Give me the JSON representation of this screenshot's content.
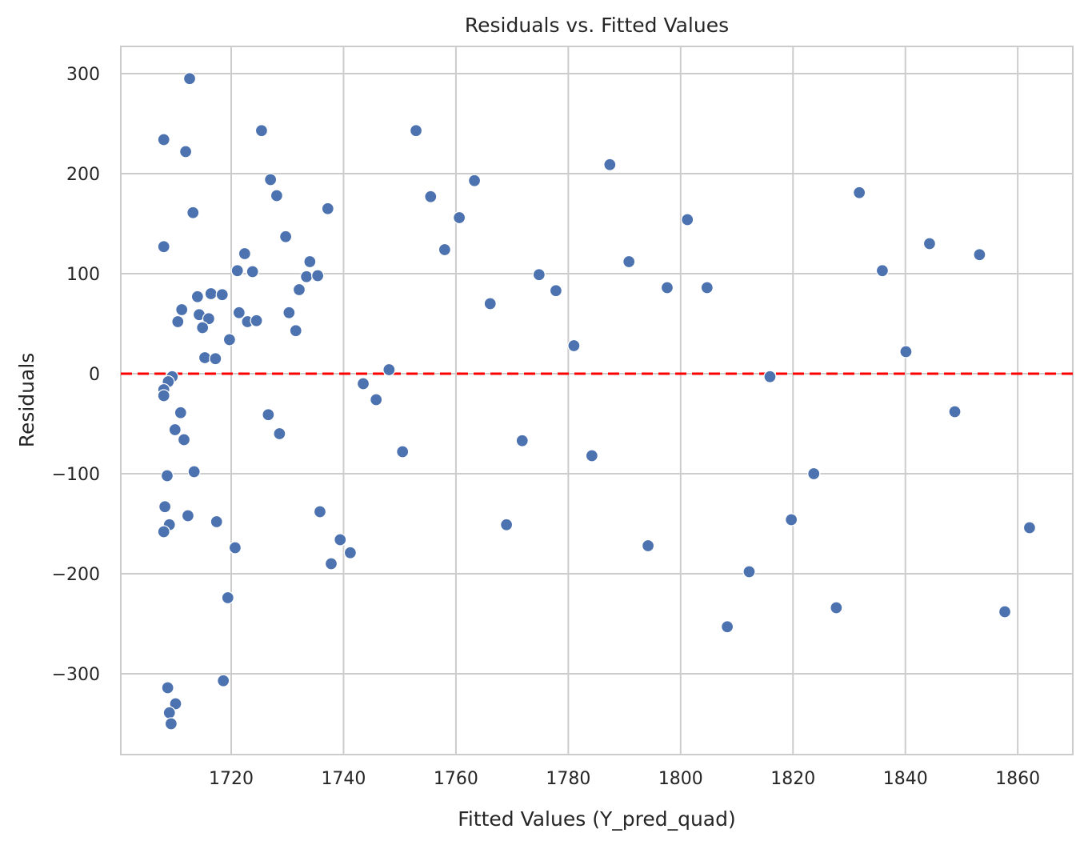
{
  "chart_data": {
    "type": "scatter",
    "title": "Residuals vs. Fitted Values",
    "xlabel": "Fitted Values (Y_pred_quad)",
    "ylabel": "Residuals",
    "xlim": [
      1700.35,
      1869.8
    ],
    "ylim": [
      -380.8,
      327.2
    ],
    "xticks": [
      1720,
      1740,
      1760,
      1780,
      1800,
      1820,
      1840,
      1860
    ],
    "yticks": [
      -300,
      -200,
      -100,
      0,
      100,
      200,
      300
    ],
    "xtick_labels": [
      "1720",
      "1740",
      "1760",
      "1780",
      "1800",
      "1820",
      "1840",
      "1860"
    ],
    "ytick_labels": [
      "−300",
      "−200",
      "−100",
      "0",
      "100",
      "200",
      "300"
    ],
    "grid": true,
    "reference_line": {
      "y": 0,
      "style": "dashed",
      "color": "#ff0000"
    },
    "point_color": "#4c72b0",
    "points": [
      [
        1712.6,
        295
      ],
      [
        1708.0,
        234
      ],
      [
        1711.9,
        222
      ],
      [
        1725.4,
        243
      ],
      [
        1713.2,
        161
      ],
      [
        1708.0,
        127
      ],
      [
        1727.0,
        194
      ],
      [
        1728.1,
        178
      ],
      [
        1729.7,
        137
      ],
      [
        1737.2,
        165
      ],
      [
        1722.4,
        120
      ],
      [
        1721.1,
        103
      ],
      [
        1723.8,
        102
      ],
      [
        1734.0,
        112
      ],
      [
        1733.4,
        97
      ],
      [
        1735.4,
        98
      ],
      [
        1732.1,
        84
      ],
      [
        1714.0,
        77
      ],
      [
        1716.4,
        80
      ],
      [
        1718.4,
        79
      ],
      [
        1711.2,
        64
      ],
      [
        1714.3,
        59
      ],
      [
        1716.0,
        55
      ],
      [
        1710.5,
        52
      ],
      [
        1714.9,
        46
      ],
      [
        1721.4,
        61
      ],
      [
        1722.9,
        52
      ],
      [
        1724.5,
        53
      ],
      [
        1730.3,
        61
      ],
      [
        1731.5,
        43
      ],
      [
        1719.7,
        34
      ],
      [
        1715.3,
        16
      ],
      [
        1717.2,
        15
      ],
      [
        1709.5,
        -3
      ],
      [
        1708.8,
        -8
      ],
      [
        1708.0,
        -16
      ],
      [
        1708.0,
        -22
      ],
      [
        1711.0,
        -39
      ],
      [
        1710.0,
        -56
      ],
      [
        1711.6,
        -66
      ],
      [
        1726.6,
        -41
      ],
      [
        1728.6,
        -60
      ],
      [
        1713.4,
        -98
      ],
      [
        1708.6,
        -102
      ],
      [
        1708.2,
        -133
      ],
      [
        1712.3,
        -142
      ],
      [
        1709.0,
        -151
      ],
      [
        1708.0,
        -158
      ],
      [
        1717.4,
        -148
      ],
      [
        1720.7,
        -174
      ],
      [
        1719.4,
        -224
      ],
      [
        1708.7,
        -314
      ],
      [
        1718.6,
        -307
      ],
      [
        1710.1,
        -330
      ],
      [
        1709.0,
        -339
      ],
      [
        1709.3,
        -350
      ],
      [
        1735.8,
        -138
      ],
      [
        1739.4,
        -166
      ],
      [
        1737.8,
        -190
      ],
      [
        1741.2,
        -179
      ],
      [
        1743.5,
        -10
      ],
      [
        1745.8,
        -26
      ],
      [
        1748.1,
        4
      ],
      [
        1750.5,
        -78
      ],
      [
        1752.9,
        243
      ],
      [
        1755.5,
        177
      ],
      [
        1758.0,
        124
      ],
      [
        1760.6,
        156
      ],
      [
        1763.3,
        193
      ],
      [
        1766.1,
        70
      ],
      [
        1769.0,
        -151
      ],
      [
        1771.8,
        -67
      ],
      [
        1774.8,
        99
      ],
      [
        1777.8,
        83
      ],
      [
        1781.0,
        28
      ],
      [
        1784.2,
        -82
      ],
      [
        1787.4,
        209
      ],
      [
        1790.8,
        112
      ],
      [
        1794.2,
        -172
      ],
      [
        1797.6,
        86
      ],
      [
        1801.2,
        154
      ],
      [
        1804.7,
        86
      ],
      [
        1808.3,
        -253
      ],
      [
        1812.2,
        -198
      ],
      [
        1815.9,
        -3
      ],
      [
        1819.7,
        -146
      ],
      [
        1823.7,
        -100
      ],
      [
        1827.7,
        -234
      ],
      [
        1831.8,
        181
      ],
      [
        1835.9,
        103
      ],
      [
        1840.1,
        22
      ],
      [
        1844.3,
        130
      ],
      [
        1848.8,
        -38
      ],
      [
        1853.2,
        119
      ],
      [
        1857.7,
        -238
      ],
      [
        1862.1,
        -154
      ]
    ]
  }
}
